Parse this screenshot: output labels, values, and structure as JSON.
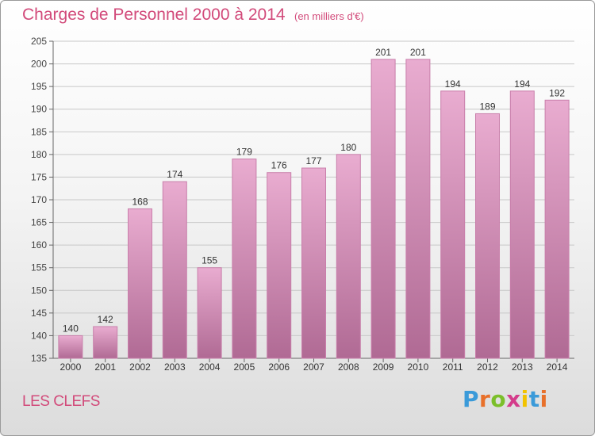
{
  "header": {
    "title": "Charges de Personnel 2000 à 2014",
    "unit": "(en milliers d'€)"
  },
  "footer": {
    "place": "LES CLEFS",
    "logo": "Proxiti"
  },
  "colors": {
    "title": "#d24a7a",
    "bar_top": "#e9acd0",
    "bar_bottom": "#b06a94",
    "bar_edge": "#c97fab"
  },
  "logo_colors": [
    "#3a9ad9",
    "#e8702a",
    "#7bbf2a",
    "#d43c8b",
    "#f2c300",
    "#3a9ad9",
    "#e8702a"
  ],
  "chart_data": {
    "type": "bar",
    "title": "Charges de Personnel 2000 à 2014",
    "subtitle": "(en milliers d'€)",
    "xlabel": "",
    "ylabel": "",
    "categories": [
      "2000",
      "2001",
      "2002",
      "2003",
      "2004",
      "2005",
      "2006",
      "2007",
      "2008",
      "2009",
      "2010",
      "2011",
      "2012",
      "2013",
      "2014"
    ],
    "values": [
      140,
      142,
      168,
      174,
      155,
      179,
      176,
      177,
      180,
      201,
      201,
      194,
      189,
      194,
      192
    ],
    "ylim": [
      135,
      205
    ],
    "yticks": [
      135,
      140,
      145,
      150,
      155,
      160,
      165,
      170,
      175,
      180,
      185,
      190,
      195,
      200,
      205
    ],
    "grid": true,
    "legend": "none"
  }
}
